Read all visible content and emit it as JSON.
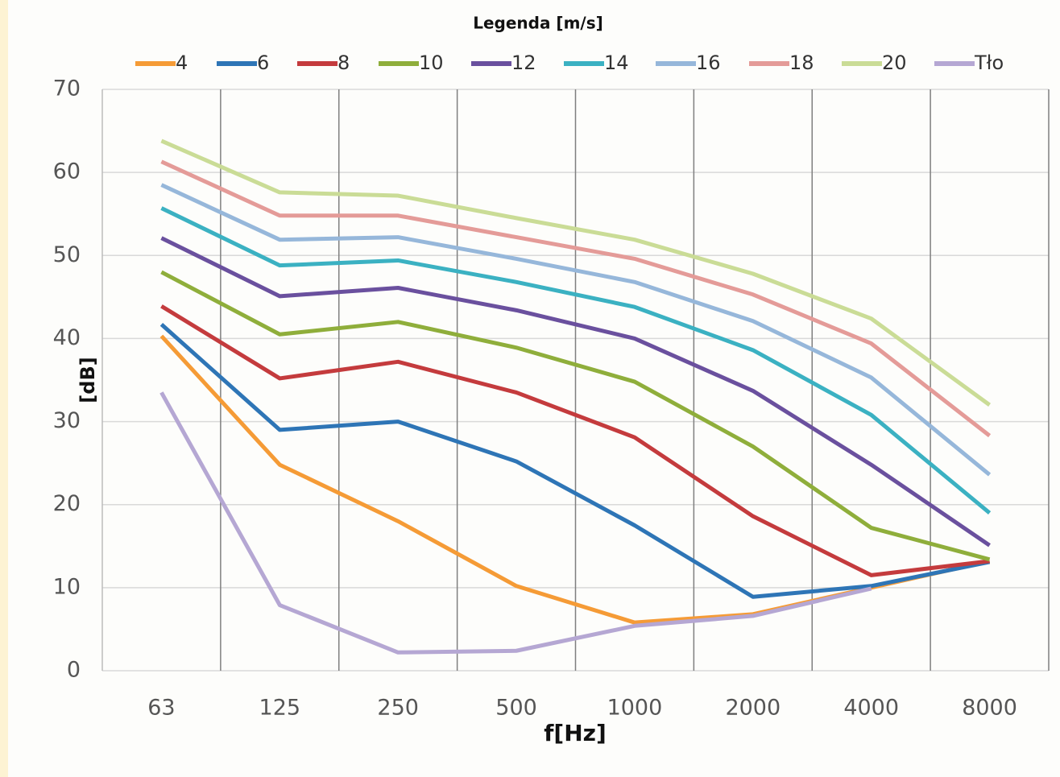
{
  "chart_data": {
    "type": "line",
    "title": "Legenda [m/s]",
    "xlabel": "f[Hz]",
    "ylabel": "[dB]",
    "categories": [
      "63",
      "125",
      "250",
      "500",
      "1000",
      "2000",
      "4000",
      "8000"
    ],
    "ylim": [
      0,
      70
    ],
    "yticks": [
      0,
      10,
      20,
      30,
      40,
      50,
      60,
      70
    ],
    "grid": true,
    "legend": "top",
    "series": [
      {
        "name": "4",
        "color": "#f59b36",
        "values": [
          40.3,
          24.8,
          18.0,
          10.2,
          5.8,
          6.8,
          10.0,
          13.2
        ]
      },
      {
        "name": "6",
        "color": "#2e75b6",
        "values": [
          41.7,
          29.0,
          30.0,
          25.2,
          17.5,
          8.9,
          10.2,
          13.1
        ]
      },
      {
        "name": "8",
        "color": "#c43b3d",
        "values": [
          43.9,
          35.2,
          37.2,
          33.5,
          28.1,
          18.6,
          11.5,
          13.2
        ]
      },
      {
        "name": "10",
        "color": "#8fae3b",
        "values": [
          48.0,
          40.5,
          42.0,
          38.9,
          34.8,
          27.0,
          17.2,
          13.4
        ]
      },
      {
        "name": "12",
        "color": "#6a509e",
        "values": [
          52.1,
          45.1,
          46.1,
          43.4,
          40.0,
          33.7,
          24.8,
          15.1
        ]
      },
      {
        "name": "14",
        "color": "#3bb1c2",
        "values": [
          55.7,
          48.8,
          49.4,
          46.8,
          43.8,
          38.6,
          30.8,
          19.0
        ]
      },
      {
        "name": "16",
        "color": "#96b7da",
        "values": [
          58.5,
          51.9,
          52.2,
          49.6,
          46.8,
          42.1,
          35.3,
          23.6
        ]
      },
      {
        "name": "18",
        "color": "#e49b98",
        "values": [
          61.3,
          54.8,
          54.8,
          52.2,
          49.6,
          45.3,
          39.4,
          28.3
        ]
      },
      {
        "name": "20",
        "color": "#cadc96",
        "values": [
          63.8,
          57.6,
          57.2,
          54.5,
          51.9,
          47.8,
          42.4,
          32.0
        ]
      },
      {
        "name": "Tło",
        "color": "#b5a7d3",
        "values": [
          33.5,
          7.9,
          2.2,
          2.4,
          5.4,
          6.6,
          9.9,
          null
        ]
      }
    ]
  }
}
